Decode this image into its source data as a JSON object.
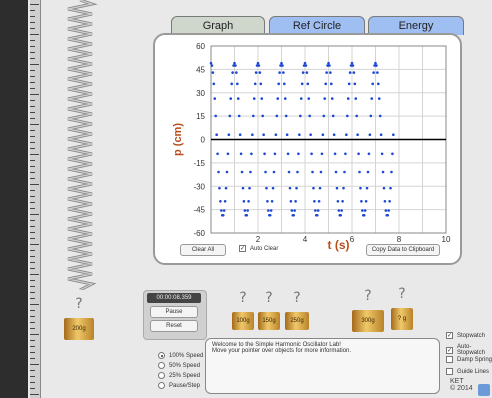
{
  "tabs": [
    {
      "label": "Graph",
      "active": true
    },
    {
      "label": "Ref Circle",
      "active": false
    },
    {
      "label": "Energy",
      "active": false
    }
  ],
  "chart_data": {
    "type": "scatter",
    "xlabel": "t (s)",
    "ylabel": "p (cm)",
    "xlim": [
      0,
      10
    ],
    "ylim": [
      -60,
      60
    ],
    "x_ticks": [
      2,
      4,
      6,
      8,
      10
    ],
    "y_ticks": [
      60,
      45,
      30,
      15,
      0,
      -15,
      -30,
      -45,
      -60
    ],
    "series": [
      {
        "amplitude_cm": 49,
        "period_s": 1.0,
        "t_start": 0.0,
        "t_end": 7.8,
        "color": "#1a47d4"
      }
    ],
    "grid": true
  },
  "graph_buttons": {
    "clear_all": "Clear All",
    "auto_clear": "Auto Clear",
    "copy": "Copy Data to Clipboard"
  },
  "stopwatch": {
    "time": "00:00:08.359",
    "pause": "Pause",
    "reset": "Reset"
  },
  "weights": {
    "hanging": "200g",
    "row": [
      "100g",
      "150g",
      "250g",
      "300g",
      "? g"
    ]
  },
  "speed_options": [
    {
      "label": "100% Speed",
      "selected": true
    },
    {
      "label": "50% Speed",
      "selected": false
    },
    {
      "label": "25% Speed",
      "selected": false
    },
    {
      "label": "Pause/Step",
      "selected": false
    }
  ],
  "message": {
    "line1": "Welcome to the Simple Harmonic Oscillator Lab!",
    "line2": "Move your pointer over objects for more information."
  },
  "options": [
    {
      "label": "Stopwatch",
      "checked": true
    },
    {
      "label": "Auto-Stopwatch",
      "checked": true
    },
    {
      "label": "Damp Spring",
      "checked": false
    },
    {
      "label": "Guide Lines",
      "checked": false
    }
  ],
  "logo": {
    "line1": "KET",
    "line2": "© 2014"
  }
}
